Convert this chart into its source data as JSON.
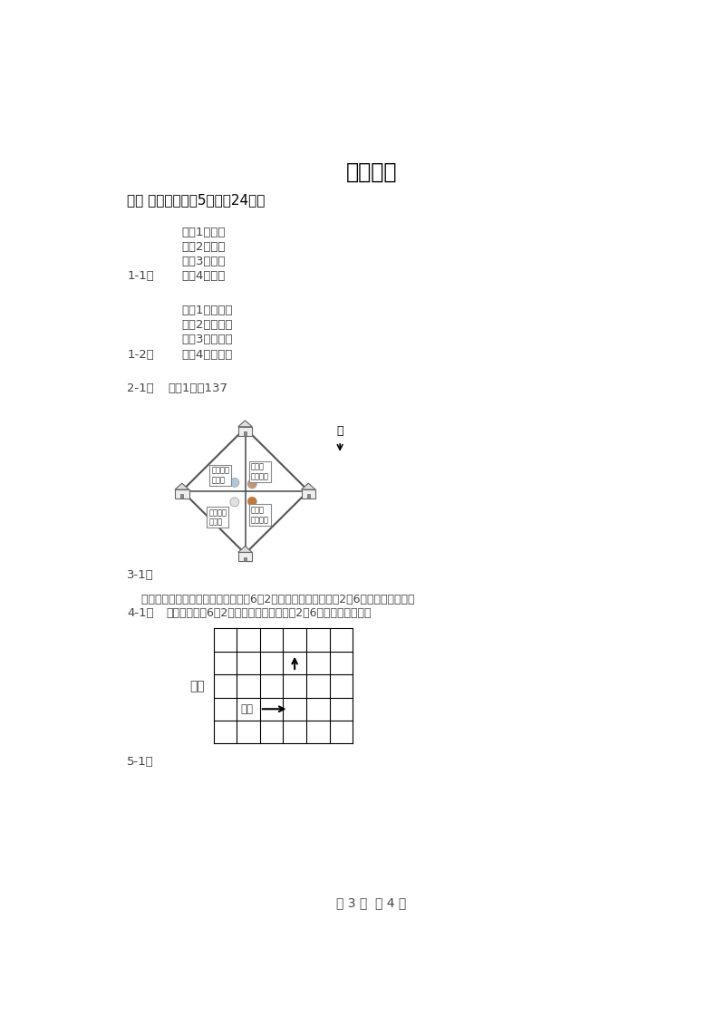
{
  "title": "参考答案",
  "section1_title": "一、 辨认方向（共5题；共24分）",
  "background": "#ffffff",
  "text_color": "#000000",
  "gray_color": "#444444",
  "items": [
    {
      "label": "1-1、",
      "entries": [
        "【第1空】东",
        "【第2空】北",
        "【第3空】南",
        "【第4空】西"
      ]
    },
    {
      "label": "1-2、",
      "entries": [
        "【第1空】西北",
        "【第2空】东北",
        "【第3空】西南",
        "【第4空】东南"
      ]
    }
  ],
  "item21_label": "2-1、",
  "item21_text": "【第1空】137",
  "item31_label": "3-1、",
  "item41_label": "4-1、",
  "item41_line1": "    根据数对与位置的定义可以知道，（6，2）表示的是电影院，（2，6）表示的是商店。",
  "item41_line2": "答：不同，（6，2）表示的是电影院，（2，6）表示的是商店。",
  "item51_label": "5-1、",
  "grid_label": "解：",
  "grid_xiaoming": "小明",
  "north_label": "北",
  "north_arrow": "↑",
  "page_footer": "第 3 页  共 4 页",
  "box_nw": "我守在东\n北方。",
  "box_ne": "我守在\n东南方。",
  "box_sw": "我守在南\n北方。",
  "box_se": "我守在\n西南方。"
}
